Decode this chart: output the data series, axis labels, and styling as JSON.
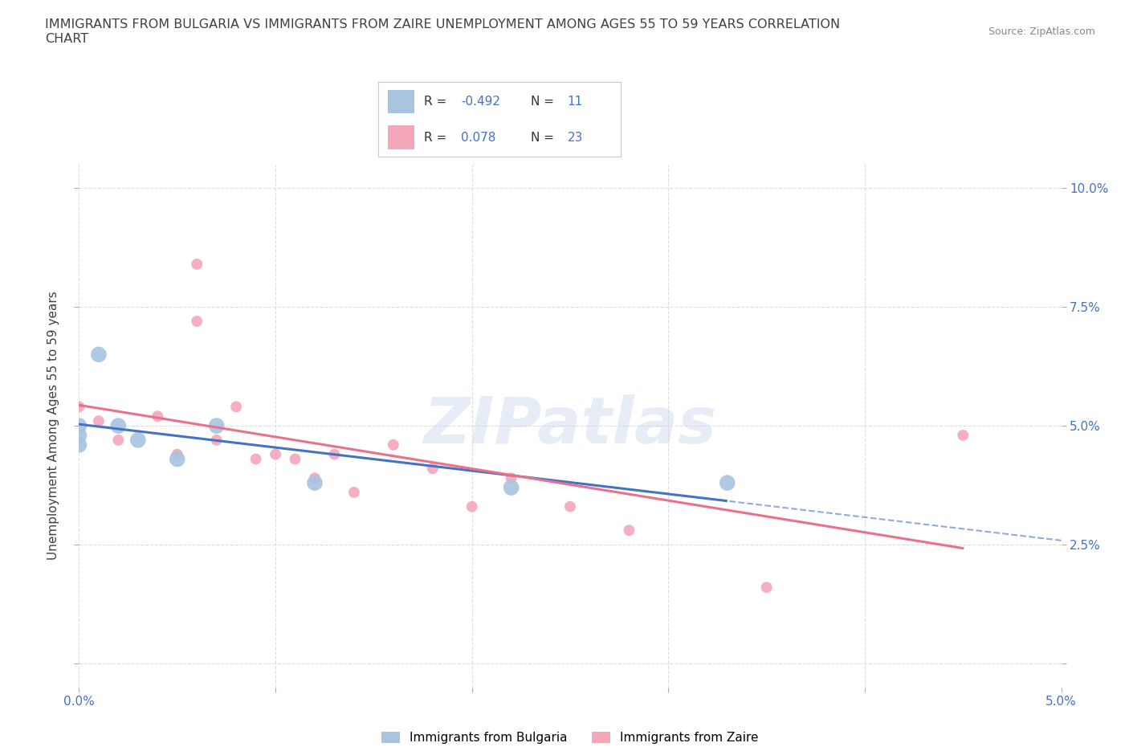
{
  "title": "IMMIGRANTS FROM BULGARIA VS IMMIGRANTS FROM ZAIRE UNEMPLOYMENT AMONG AGES 55 TO 59 YEARS CORRELATION\nCHART",
  "source_text": "Source: ZipAtlas.com",
  "ylabel": "Unemployment Among Ages 55 to 59 years",
  "xlim": [
    0.0,
    0.05
  ],
  "ylim": [
    -0.005,
    0.105
  ],
  "xticks": [
    0.0,
    0.01,
    0.02,
    0.03,
    0.04,
    0.05
  ],
  "xticklabels": [
    "0.0%",
    "",
    "",
    "",
    "",
    "5.0%"
  ],
  "yticks": [
    0.0,
    0.025,
    0.05,
    0.075,
    0.1
  ],
  "yticklabels": [
    "",
    "2.5%",
    "5.0%",
    "7.5%",
    "10.0%"
  ],
  "bulgaria_R": -0.492,
  "bulgaria_N": 11,
  "zaire_R": 0.078,
  "zaire_N": 23,
  "bulgaria_color": "#a8c4e0",
  "zaire_color": "#f4a7b9",
  "trendline_bulgaria_color": "#4472c4",
  "trendline_zaire_color": "#e8728a",
  "watermark": "ZIPatlas",
  "bulgaria_x": [
    0.0,
    0.0,
    0.0,
    0.001,
    0.002,
    0.003,
    0.005,
    0.007,
    0.012,
    0.022,
    0.033
  ],
  "bulgaria_y": [
    0.05,
    0.048,
    0.046,
    0.065,
    0.05,
    0.047,
    0.043,
    0.05,
    0.038,
    0.037,
    0.038
  ],
  "zaire_x": [
    0.0,
    0.001,
    0.002,
    0.004,
    0.005,
    0.006,
    0.006,
    0.007,
    0.008,
    0.009,
    0.01,
    0.011,
    0.012,
    0.013,
    0.014,
    0.016,
    0.018,
    0.02,
    0.022,
    0.025,
    0.028,
    0.035,
    0.045
  ],
  "zaire_y": [
    0.054,
    0.051,
    0.047,
    0.052,
    0.044,
    0.084,
    0.072,
    0.047,
    0.054,
    0.043,
    0.044,
    0.043,
    0.039,
    0.044,
    0.036,
    0.046,
    0.041,
    0.033,
    0.039,
    0.033,
    0.028,
    0.016,
    0.048
  ],
  "bulgaria_size": 200,
  "zaire_size": 100,
  "grid_color": "#dddddd",
  "bg_color": "#ffffff",
  "title_color": "#404040",
  "tick_color": "#4472c4",
  "legend_R_color": "#4472c4"
}
